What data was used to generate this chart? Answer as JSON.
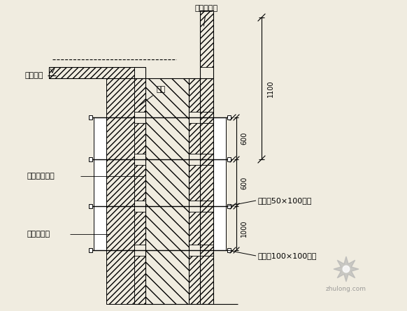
{
  "bg_color": "#f0ece0",
  "line_color": "#000000",
  "title_label": "多层板拼装",
  "label_lvban": "待浇楼板",
  "label_luoshuan": "螺栓",
  "label_hunning": "混凝土剥舌线",
  "label_yijiao": "已浇筑外墙",
  "label_cilong": "次龙骨50×100木方",
  "label_zhuilong": "主龙骨100×100木方",
  "dim_1100": "1100",
  "dim_600a": "600",
  "dim_600b": "600",
  "dim_1000": "1000",
  "watermark": "zhulong.com",
  "white": "#ffffff"
}
